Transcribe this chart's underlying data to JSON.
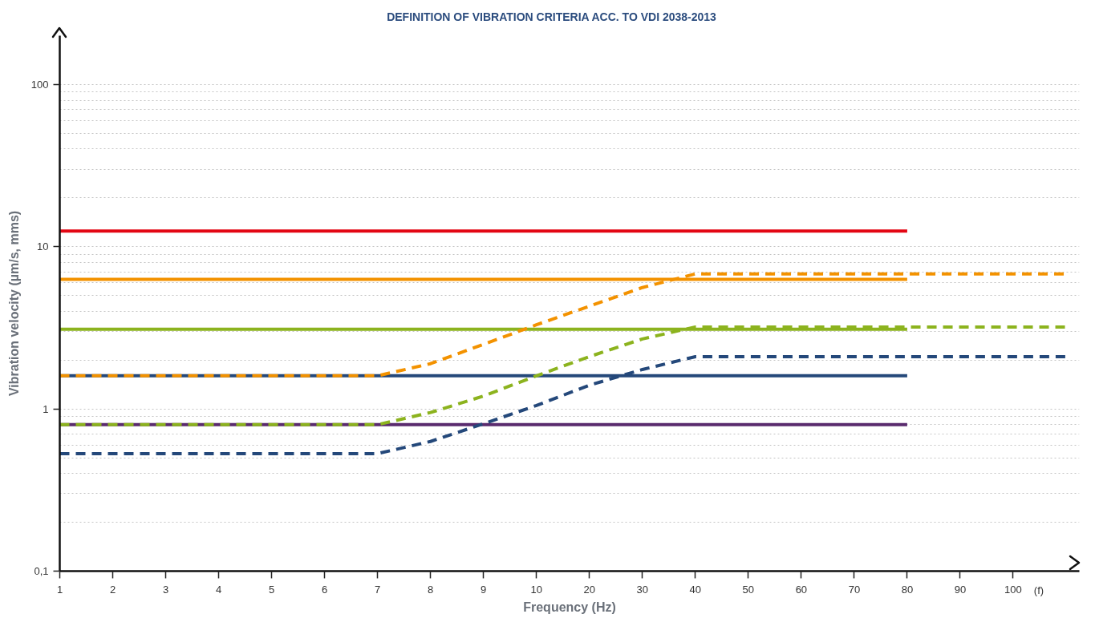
{
  "chart_data": {
    "type": "line",
    "title": "DEFINITION OF VIBRATION CRITERIA ACC. TO VDI 2038-2013",
    "xlabel": "Frequency (Hz)",
    "ylabel": "Vibration velocity (µm/s, mms)",
    "annotations": [
      "(f)"
    ],
    "log": "y",
    "grid": "y",
    "categories": [
      "1",
      "2",
      "3",
      "4",
      "5",
      "6",
      "7",
      "8",
      "9",
      "10",
      "20",
      "30",
      "40",
      "50",
      "60",
      "70",
      "80",
      "90",
      "100",
      null
    ],
    "ylim": [
      0.1,
      200
    ],
    "yticks": [
      {
        "value": 0.1,
        "label": "0,1"
      },
      1,
      10,
      100
    ],
    "series": [
      {
        "color": "#e30613",
        "line_style": "solid",
        "values": [
          12.5,
          12.5,
          12.5,
          12.5,
          12.5,
          12.5,
          12.5,
          12.5,
          12.5,
          12.5,
          12.5,
          12.5,
          12.5,
          12.5,
          12.5,
          12.5,
          12.5,
          null,
          null,
          null
        ]
      },
      {
        "color": "#f39200",
        "line_style": "solid",
        "values": [
          6.3,
          6.3,
          6.3,
          6.3,
          6.3,
          6.3,
          6.3,
          6.3,
          6.3,
          6.3,
          6.3,
          6.3,
          6.3,
          6.3,
          6.3,
          6.3,
          6.3,
          null,
          null,
          null
        ]
      },
      {
        "color": "#8cb31e",
        "line_style": "solid",
        "values": [
          3.1,
          3.1,
          3.1,
          3.1,
          3.1,
          3.1,
          3.1,
          3.1,
          3.1,
          3.1,
          3.1,
          3.1,
          3.1,
          3.1,
          3.1,
          3.1,
          3.1,
          null,
          null,
          null
        ]
      },
      {
        "color": "#24487a",
        "line_style": "solid",
        "values": [
          1.6,
          1.6,
          1.6,
          1.6,
          1.6,
          1.6,
          1.6,
          1.6,
          1.6,
          1.6,
          1.6,
          1.6,
          1.6,
          1.6,
          1.6,
          1.6,
          1.6,
          null,
          null,
          null
        ]
      },
      {
        "color": "#5a2b6e",
        "line_style": "solid",
        "values": [
          0.8,
          0.8,
          0.8,
          0.8,
          0.8,
          0.8,
          0.8,
          0.8,
          0.8,
          0.8,
          0.8,
          0.8,
          0.8,
          0.8,
          0.8,
          0.8,
          0.8,
          null,
          null,
          null
        ]
      },
      {
        "color": "#f39200",
        "line_style": "dashed",
        "values": [
          1.6,
          1.6,
          1.6,
          1.6,
          1.6,
          1.6,
          1.6,
          1.9,
          2.5,
          3.3,
          4.3,
          5.6,
          6.8,
          6.8,
          6.8,
          6.8,
          6.8,
          6.8,
          6.8,
          6.8
        ]
      },
      {
        "color": "#8cb31e",
        "line_style": "dashed",
        "values": [
          0.8,
          0.8,
          0.8,
          0.8,
          0.8,
          0.8,
          0.8,
          0.95,
          1.2,
          1.6,
          2.1,
          2.7,
          3.2,
          3.2,
          3.2,
          3.2,
          3.2,
          3.2,
          3.2,
          3.2
        ]
      },
      {
        "color": "#24487a",
        "line_style": "dashed",
        "values": [
          0.53,
          0.53,
          0.53,
          0.53,
          0.53,
          0.53,
          0.53,
          0.63,
          0.81,
          1.05,
          1.4,
          1.75,
          2.1,
          2.1,
          2.1,
          2.1,
          2.1,
          2.1,
          2.1,
          2.1
        ]
      }
    ]
  }
}
